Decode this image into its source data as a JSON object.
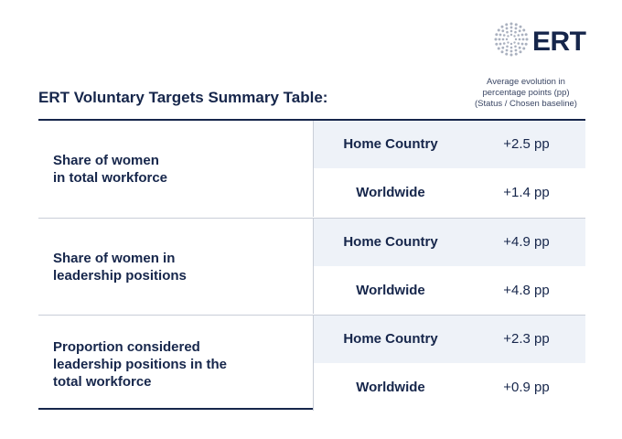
{
  "logo": {
    "text": "ERT"
  },
  "title": "ERT Voluntary Targets Summary Table:",
  "note": [
    "Average evolution in",
    "percentage points (pp)",
    "(Status / Chosen baseline)"
  ],
  "table": {
    "groups": [
      {
        "label": [
          "Share of women",
          "in total workforce"
        ],
        "rows": [
          {
            "category": "Home Country",
            "value": "+2.5 pp"
          },
          {
            "category": "Worldwide",
            "value": "+1.4 pp"
          }
        ]
      },
      {
        "label": [
          "Share of women in",
          "leadership positions"
        ],
        "rows": [
          {
            "category": "Home Country",
            "value": "+4.9 pp"
          },
          {
            "category": "Worldwide",
            "value": "+4.8 pp"
          }
        ]
      },
      {
        "label": [
          "Proportion considered",
          "leadership positions in the",
          "total workforce"
        ],
        "rows": [
          {
            "category": "Home Country",
            "value": "+2.3 pp"
          },
          {
            "category": "Worldwide",
            "value": "+0.9 pp"
          }
        ]
      }
    ]
  },
  "colors": {
    "navy": "#16264b",
    "row_highlight": "#eef2f8",
    "divider": "#c9ced8",
    "logo_dots": "#aab1bf"
  }
}
